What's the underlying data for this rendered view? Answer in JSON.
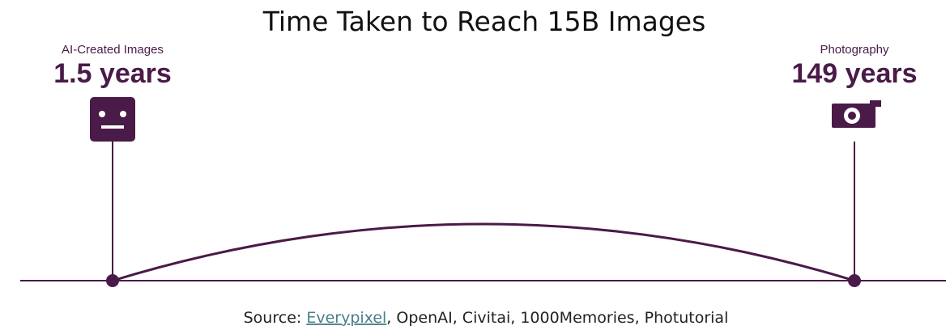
{
  "title": "Time Taken to Reach 15B Images",
  "items": [
    {
      "label": "AI-Created Images",
      "value": "1.5 years"
    },
    {
      "label": "Photography",
      "value": "149 years"
    }
  ],
  "source": {
    "prefix": "Source: ",
    "link": "Everypixel",
    "rest": ", OpenAI, Civitai, 1000Memories, Photutorial"
  }
}
